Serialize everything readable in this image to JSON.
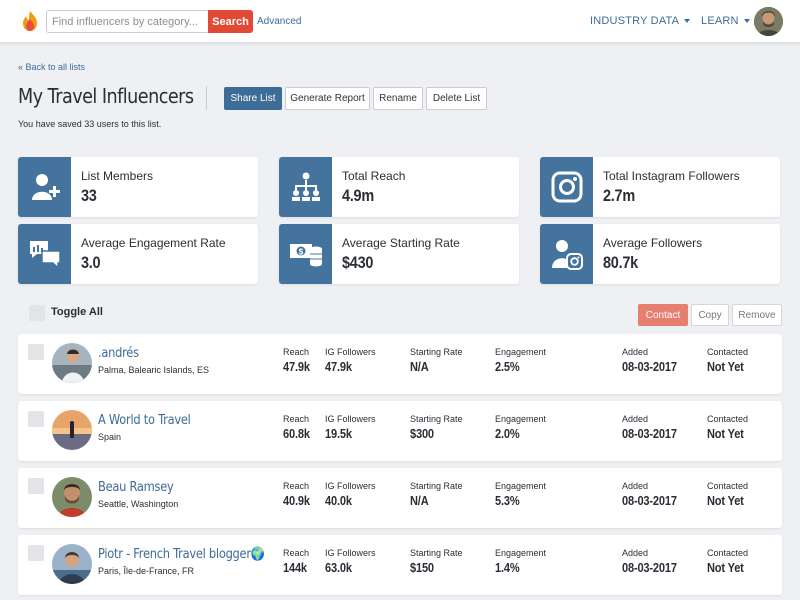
{
  "nav": {
    "search_placeholder": "Find influencers by category...",
    "search_button": "Search",
    "advanced": "Advanced",
    "industry_data": "INDUSTRY DATA",
    "learn": "LEARN"
  },
  "header": {
    "back_link": "« Back to all lists",
    "title": "My Travel Influencers",
    "saved_text": "You have saved 33 users to this list.",
    "buttons": {
      "share": "Share List",
      "report": "Generate Report",
      "rename": "Rename",
      "delete": "Delete List"
    }
  },
  "stats": [
    {
      "label": "List Members",
      "value": "33",
      "icon": "add-user-icon"
    },
    {
      "label": "Total Reach",
      "value": "4.9m",
      "icon": "org-chart-icon"
    },
    {
      "label": "Total Instagram Followers",
      "value": "2.7m",
      "icon": "instagram-icon"
    },
    {
      "label": "Average Engagement Rate",
      "value": "3.0",
      "icon": "chat-bubbles-icon"
    },
    {
      "label": "Average Starting Rate",
      "value": "$430",
      "icon": "money-icon"
    },
    {
      "label": "Average Followers",
      "value": "80.7k",
      "icon": "follower-instagram-icon"
    }
  ],
  "list_controls": {
    "toggle_all": "Toggle All",
    "contact": "Contact",
    "copy": "Copy",
    "remove": "Remove"
  },
  "columns": {
    "reach": "Reach",
    "ig_followers": "IG Followers",
    "starting_rate": "Starting Rate",
    "engagement": "Engagement",
    "added": "Added",
    "contacted": "Contacted"
  },
  "influencers": [
    {
      "name": ".andrés",
      "location": "Palma, Balearic Islands, ES",
      "reach": "47.9k",
      "ig_followers": "47.9k",
      "starting_rate": "N/A",
      "engagement": "2.5%",
      "added": "08-03-2017",
      "contacted": "Not Yet"
    },
    {
      "name": "A World to Travel",
      "location": "Spain",
      "reach": "60.8k",
      "ig_followers": "19.5k",
      "starting_rate": "$300",
      "engagement": "2.0%",
      "added": "08-03-2017",
      "contacted": "Not Yet"
    },
    {
      "name": "Beau Ramsey",
      "location": "Seattle, Washington",
      "reach": "40.9k",
      "ig_followers": "40.0k",
      "starting_rate": "N/A",
      "engagement": "5.3%",
      "added": "08-03-2017",
      "contacted": "Not Yet"
    },
    {
      "name": "Piotr - French Travel blogger🌍",
      "location": "Paris, Île-de-France, FR",
      "reach": "144k",
      "ig_followers": "63.0k",
      "starting_rate": "$150",
      "engagement": "1.4%",
      "added": "08-03-2017",
      "contacted": "Not Yet"
    }
  ]
}
